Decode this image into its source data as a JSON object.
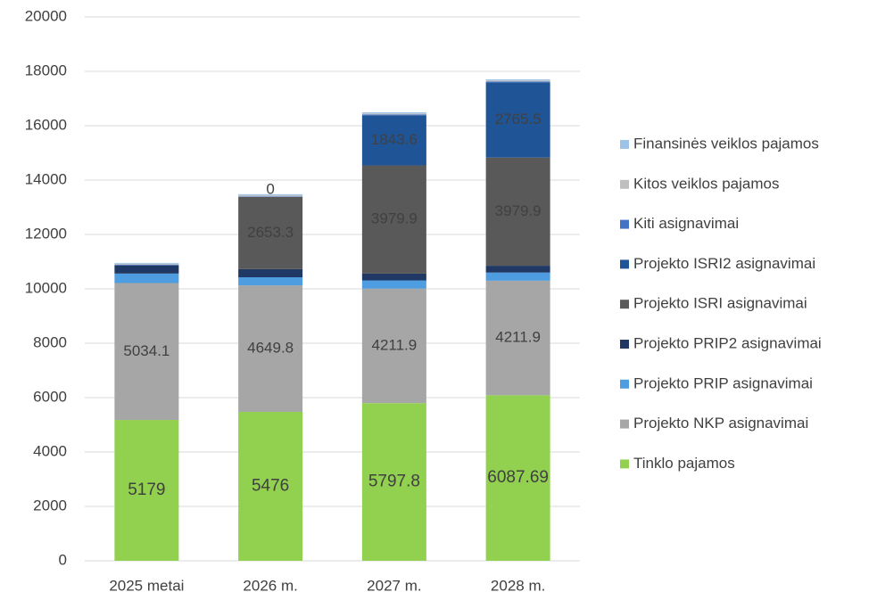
{
  "chart_data": {
    "type": "stacked_bar",
    "categories": [
      "2025 metai",
      "2026 m.",
      "2027 m.",
      "2028 m."
    ],
    "series": [
      {
        "name": "Tinklo pajamos",
        "color": "#92d050",
        "values": [
          5179,
          5476,
          5797.8,
          6087.69
        ],
        "value_labels": [
          "5179",
          "5476",
          "5797.8",
          "6087.69"
        ]
      },
      {
        "name": "Projekto NKP asignavimai",
        "color": "#a6a6a6",
        "values": [
          5034.1,
          4649.8,
          4211.9,
          4211.9
        ],
        "value_labels": [
          "5034.1",
          "4649.8",
          "4211.9",
          "4211.9"
        ]
      },
      {
        "name": "Projekto PRIP asignavimai",
        "color": "#4d9de0",
        "values": [
          350,
          300,
          300,
          300
        ],
        "value_labels": [
          null,
          null,
          null,
          null
        ]
      },
      {
        "name": "Projekto PRIP2 asignavimai",
        "color": "#1f3864",
        "values": [
          300,
          300,
          250,
          250
        ],
        "value_labels": [
          null,
          null,
          null,
          null
        ]
      },
      {
        "name": "Projekto ISRI asignavimai",
        "color": "#595959",
        "values": [
          0,
          2653.3,
          3979.9,
          3979.9
        ],
        "value_labels": [
          null,
          "2653.3",
          "3979.9",
          "3979.9"
        ]
      },
      {
        "name": "Projekto ISRI2 asignavimai",
        "color": "#1f5597",
        "values": [
          0,
          0,
          1843.6,
          2765.5
        ],
        "value_labels": [
          null,
          "0",
          "1843.6",
          "2765.5"
        ]
      },
      {
        "name": "Kiti asignavimai",
        "color": "#4472c4",
        "values": [
          30,
          20,
          30,
          30
        ],
        "value_labels": [
          null,
          null,
          null,
          null
        ]
      },
      {
        "name": "Kitos veiklos pajamos",
        "color": "#bfbfbf",
        "values": [
          30,
          40,
          40,
          40
        ],
        "value_labels": [
          null,
          null,
          null,
          null
        ]
      },
      {
        "name": "Finansinės veiklos pajamos",
        "color": "#9dc3e6",
        "values": [
          30,
          40,
          40,
          40
        ],
        "value_labels": [
          null,
          null,
          null,
          null
        ]
      }
    ],
    "ylim": [
      0,
      20000
    ],
    "yticks": [
      0,
      2000,
      4000,
      6000,
      8000,
      10000,
      12000,
      14000,
      16000,
      18000,
      20000
    ],
    "grid": true,
    "legend": "right"
  }
}
